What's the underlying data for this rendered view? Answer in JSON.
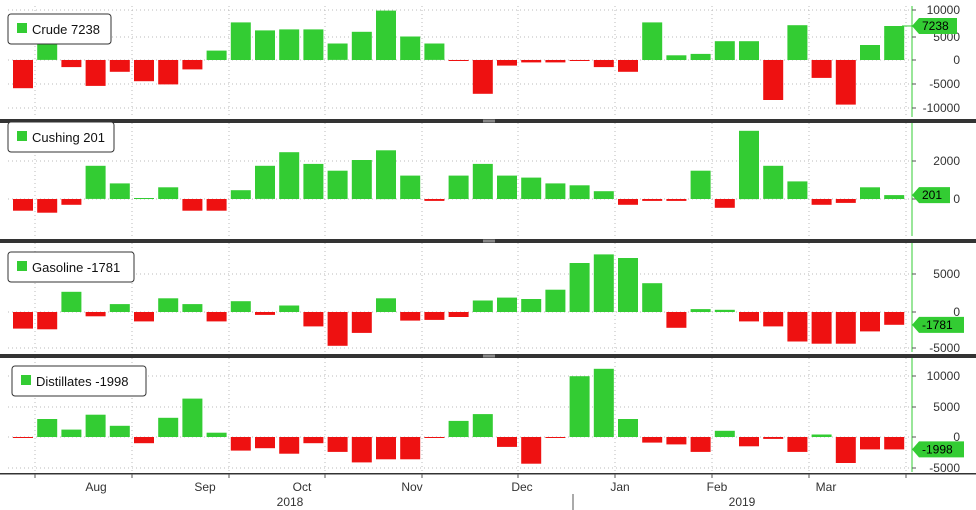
{
  "colors": {
    "positive": "#33cc33",
    "negative": "#ee1111",
    "grid": "#bbbbbb",
    "separator": "#333333"
  },
  "x_axis": {
    "months": [
      "Aug",
      "Sep",
      "Oct",
      "Nov",
      "Dec",
      "Jan",
      "Feb",
      "Mar"
    ],
    "years": [
      "2018",
      "2019"
    ]
  },
  "chart_data": [
    {
      "type": "bar",
      "legend": "Crude 7238",
      "last_value_label": "7238",
      "yticks": [
        "10000",
        "5000",
        "0",
        "-5000",
        "-10000"
      ],
      "ylim": [
        -11000,
        11000
      ],
      "values": [
        -6000,
        3500,
        -1500,
        -5500,
        -2500,
        -4500,
        -5200,
        -2000,
        2000,
        8000,
        6300,
        6500,
        6500,
        3500,
        6000,
        10500,
        5000,
        3500,
        -100,
        -7200,
        -1200,
        -500,
        -500,
        -200,
        -1500,
        -2500,
        8000,
        1000,
        1300,
        4000,
        4000,
        -8500,
        7400,
        -3800,
        -9500,
        3200,
        7238
      ],
      "ylabel": ""
    },
    {
      "type": "bar",
      "legend": "Cushing 201",
      "last_value_label": "201",
      "yticks": [
        "2000",
        "0"
      ],
      "ylim": [
        -1200,
        3400
      ],
      "values": [
        -600,
        -700,
        -300,
        1700,
        800,
        50,
        600,
        -600,
        -600,
        450,
        1700,
        2400,
        1800,
        1450,
        2000,
        2500,
        1200,
        -100,
        1200,
        1800,
        1200,
        1100,
        800,
        700,
        400,
        -300,
        -100,
        -100,
        1450,
        -450,
        3500,
        1700,
        900,
        -300,
        -200,
        600,
        201
      ],
      "ylabel": ""
    },
    {
      "type": "bar",
      "legend": "Gasoline -1781",
      "last_value_label": "-1781",
      "yticks": [
        "5000",
        "0",
        "-5000"
      ],
      "ylim": [
        -5500,
        9500
      ],
      "values": [
        -2300,
        -2400,
        2800,
        -600,
        1100,
        -1300,
        1900,
        1100,
        -1300,
        1500,
        -400,
        900,
        -2000,
        -4700,
        -2900,
        1900,
        -1200,
        -1100,
        -700,
        1600,
        2000,
        1800,
        3100,
        6800,
        8000,
        7500,
        4000,
        -2200,
        400,
        300,
        -1300,
        -2000,
        -4100,
        -4400,
        -4400,
        -2700,
        -1781
      ],
      "ylabel": ""
    },
    {
      "type": "bar",
      "legend": "Distillates -1998",
      "last_value_label": "-1998",
      "yticks": [
        "10000",
        "5000",
        "0",
        "-5000"
      ],
      "ylim": [
        -6000,
        11500
      ],
      "values": [
        -100,
        2900,
        1200,
        3600,
        1800,
        -1000,
        3100,
        6200,
        700,
        -2200,
        -1800,
        -2700,
        -1000,
        -2400,
        -4100,
        -3600,
        -3600,
        -100,
        2600,
        3700,
        -1600,
        -4300,
        -100,
        9800,
        11000,
        2900,
        -900,
        -1200,
        -2400,
        1000,
        -1500,
        -300,
        -2400,
        400,
        -4200,
        -2000,
        -1998
      ],
      "ylabel": ""
    }
  ]
}
